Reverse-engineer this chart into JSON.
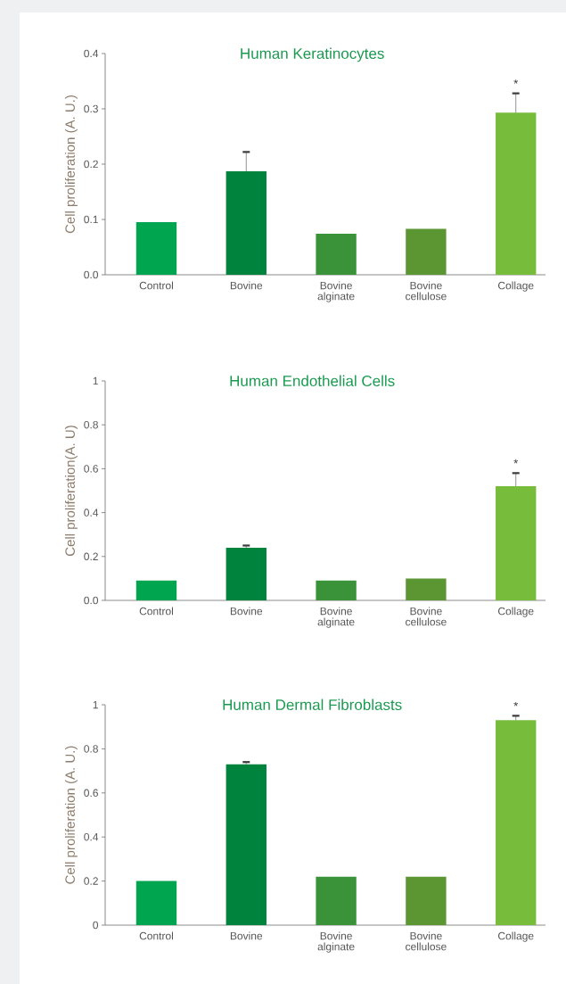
{
  "chart_data": [
    {
      "type": "bar",
      "title": "Human Keratinocytes",
      "ylabel": "Cell proliferation (A. U.)",
      "categories": [
        "Control",
        "Bovine",
        "Bovine alginate",
        "Bovine cellulose",
        "Collage"
      ],
      "values": [
        0.095,
        0.187,
        0.074,
        0.083,
        0.293
      ],
      "colors": [
        "#00a550",
        "#00843d",
        "#3a9339",
        "#5b9632",
        "#78bc3c"
      ],
      "errors": [
        null,
        0.035,
        null,
        null,
        0.035
      ],
      "ylim": [
        0,
        0.4
      ],
      "yticks": [
        {
          "value": 0,
          "label": "0.0"
        },
        0.1,
        0.2,
        0.3,
        0.4
      ],
      "annotations": [
        "*"
      ]
    },
    {
      "type": "bar",
      "title": "Human Endothelial Cells",
      "ylabel": "Cell proliferation(A. U)",
      "categories": [
        "Control",
        "Bovine",
        "Bovine alginate",
        "Bovine cellulose",
        "Collage"
      ],
      "values": [
        0.09,
        0.24,
        0.09,
        0.1,
        0.52
      ],
      "colors": [
        "#00a550",
        "#00843d",
        "#3a9339",
        "#5b9632",
        "#78bc3c"
      ],
      "errors": [
        null,
        0.01,
        null,
        null,
        0.06
      ],
      "ylim": [
        0,
        1
      ],
      "yticks": [
        {
          "value": 0,
          "label": "0.0"
        },
        0.2,
        0.4,
        0.6,
        0.8,
        1
      ],
      "annotations": [
        "*"
      ]
    },
    {
      "type": "bar",
      "title": "Human Dermal Fibroblasts",
      "ylabel": "Cell proliferation (A. U.)",
      "categories": [
        "Control",
        "Bovine",
        "Bovine alginate",
        "Bovine cellulose",
        "Collage"
      ],
      "values": [
        0.2,
        0.73,
        0.22,
        0.22,
        0.93
      ],
      "colors": [
        "#00a550",
        "#00843d",
        "#3a9339",
        "#5b9632",
        "#78bc3c"
      ],
      "errors": [
        null,
        0.01,
        null,
        null,
        0.02
      ],
      "ylim": [
        0,
        1
      ],
      "yticks": [
        0,
        0.2,
        0.4,
        0.6,
        0.8,
        1
      ],
      "annotations": [
        "*"
      ]
    }
  ]
}
